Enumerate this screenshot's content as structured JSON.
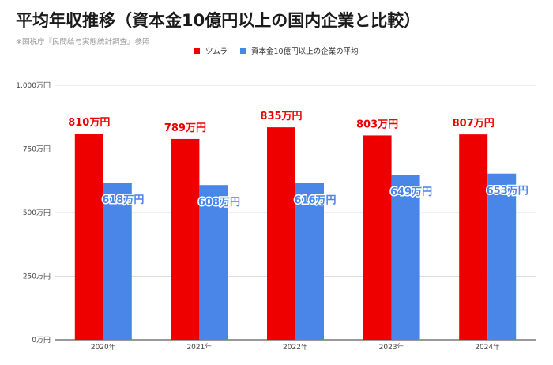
{
  "title": "平均年収推移（資本金10億円以上の国内企業と比較）",
  "subtitle": "※国税庁『民間給与実態統計調査』参照",
  "colors": {
    "series1": "#ee0000",
    "series2": "#4a86e8",
    "grid": "#dddddd",
    "axis": "#333333"
  },
  "chart_data": {
    "type": "bar",
    "title": "平均年収推移（資本金10億円以上の国内企業と比較）",
    "subtitle": "※国税庁『民間給与実態統計調査』参照",
    "categories": [
      "2020年",
      "2021年",
      "2022年",
      "2023年",
      "2024年"
    ],
    "series": [
      {
        "name": "ツムラ",
        "values": [
          810,
          789,
          835,
          803,
          807
        ],
        "labels": [
          "810万円",
          "789万円",
          "835万円",
          "803万円",
          "807万円"
        ]
      },
      {
        "name": "資本金10億円以上の企業の平均",
        "values": [
          618,
          608,
          616,
          649,
          653
        ],
        "labels": [
          "618万円",
          "608万円",
          "616万円",
          "649万円",
          "653万円"
        ]
      }
    ],
    "ylim": [
      0,
      1000
    ],
    "yticks": [
      0,
      250,
      500,
      750,
      1000
    ],
    "ytick_labels": [
      "0万円",
      "250万円",
      "500万円",
      "750万円",
      "1,000万円"
    ],
    "grid": true,
    "legend_position": "top"
  }
}
